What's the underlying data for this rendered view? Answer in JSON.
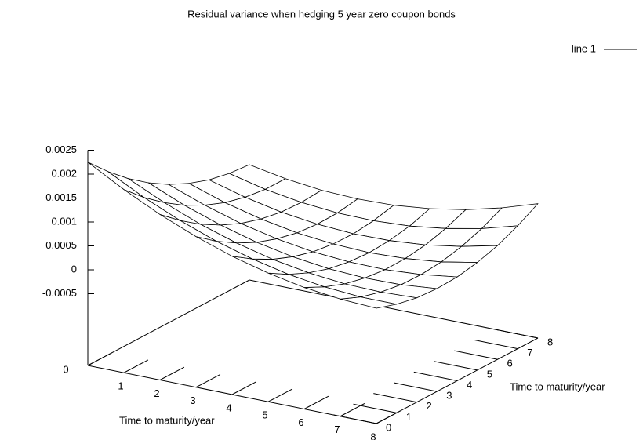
{
  "chart_data": {
    "type": "surface",
    "title": "Residual variance when hedging 5 year zero coupon bonds",
    "xlabel": "Time to maturity/year",
    "ylabel": "Time to maturity/year",
    "x": [
      0,
      1,
      2,
      3,
      4,
      5,
      6,
      7,
      8
    ],
    "y": [
      0,
      1,
      2,
      3,
      4,
      5,
      6,
      7,
      8
    ],
    "series": [
      {
        "name": "line 1",
        "color": "#000000",
        "values": [
          [
            0.00225,
            0.00183,
            0.00146,
            0.00115,
            0.00089,
            0.00069,
            0.00054,
            0.00045,
            0.00041
          ],
          [
            0.00183,
            0.00144,
            0.00111,
            0.00083,
            0.00061,
            0.00044,
            0.00033,
            0.00027,
            0.00027
          ],
          [
            0.00146,
            0.00111,
            0.00081,
            0.00057,
            0.00038,
            0.00025,
            0.00017,
            0.00015,
            0.00018
          ],
          [
            0.00115,
            0.00083,
            0.00057,
            0.00036,
            0.00021,
            0.00011,
            7e-05,
            8e-05,
            0.00015
          ],
          [
            0.00089,
            0.00061,
            0.00038,
            0.00021,
            9e-05,
            3e-05,
            2e-05,
            7e-05,
            0.00017
          ],
          [
            0.00069,
            0.00044,
            0.00025,
            0.00011,
            3e-05,
            0,
            3e-05,
            0.00011,
            0.00025
          ],
          [
            0.00054,
            0.00033,
            0.00017,
            7e-05,
            2e-05,
            3e-05,
            9e-05,
            0.00021,
            0.00038
          ],
          [
            0.00045,
            0.00027,
            0.00015,
            8e-05,
            7e-05,
            0.00011,
            0.00021,
            0.00036,
            0.00057
          ],
          [
            0.00041,
            0.00027,
            0.00018,
            0.00015,
            0.00017,
            0.00025,
            0.00038,
            0.00057,
            0.00081
          ]
        ]
      }
    ],
    "xlim": [
      0,
      8
    ],
    "ylim": [
      0,
      8
    ],
    "zlim": [
      -0.0005,
      0.0025
    ],
    "xticks": [
      0,
      1,
      2,
      3,
      4,
      5,
      6,
      7,
      8
    ],
    "yticks": [
      0,
      1,
      2,
      3,
      4,
      5,
      6,
      7,
      8
    ],
    "zticks": [
      -0.0005,
      0,
      0.0005,
      0.001,
      0.0015,
      0.002,
      0.0025
    ],
    "ticslevel": 0.5,
    "legend": "top-right"
  }
}
